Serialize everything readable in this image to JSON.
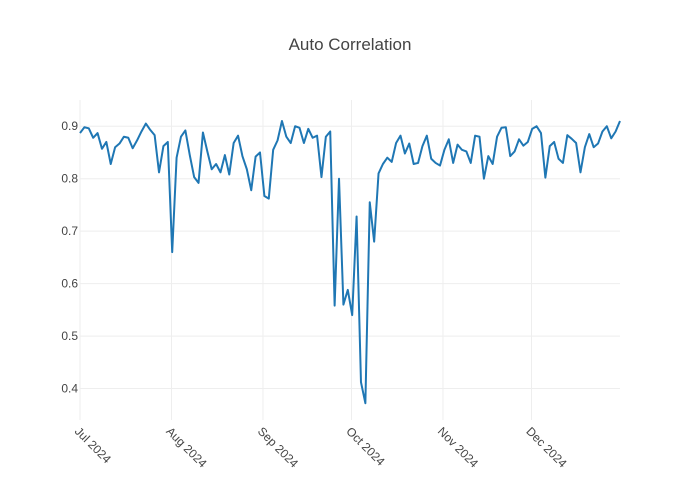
{
  "chart_data": {
    "type": "line",
    "title": "Auto Correlation",
    "xlabel": "",
    "ylabel": "",
    "x_start": "2024-07-01",
    "x_end": "2024-12-31",
    "xlim": [
      "2024-07-01",
      "2024-12-31"
    ],
    "ylim": [
      0.34,
      0.95
    ],
    "grid": true,
    "legend": "none",
    "line_color": "#1f77b4",
    "x_ticks": [
      {
        "date": "2024-07-01",
        "label": "Jul 2024"
      },
      {
        "date": "2024-08-01",
        "label": "Aug 2024"
      },
      {
        "date": "2024-09-01",
        "label": "Sep 2024"
      },
      {
        "date": "2024-10-01",
        "label": "Oct 2024"
      },
      {
        "date": "2024-11-01",
        "label": "Nov 2024"
      },
      {
        "date": "2024-12-01",
        "label": "Dec 2024"
      }
    ],
    "y_ticks": [
      {
        "value": 0.4,
        "label": "0.4"
      },
      {
        "value": 0.5,
        "label": "0.5"
      },
      {
        "value": 0.6,
        "label": "0.6"
      },
      {
        "value": 0.7,
        "label": "0.7"
      },
      {
        "value": 0.8,
        "label": "0.8"
      },
      {
        "value": 0.9,
        "label": "0.9"
      }
    ],
    "series": [
      {
        "values": [
          0.887,
          0.898,
          0.896,
          0.878,
          0.887,
          0.857,
          0.87,
          0.828,
          0.86,
          0.867,
          0.88,
          0.878,
          0.858,
          0.873,
          0.89,
          0.905,
          0.893,
          0.883,
          0.812,
          0.862,
          0.87,
          0.66,
          0.84,
          0.88,
          0.892,
          0.845,
          0.803,
          0.792,
          0.888,
          0.852,
          0.818,
          0.828,
          0.812,
          0.845,
          0.808,
          0.868,
          0.882,
          0.843,
          0.818,
          0.778,
          0.842,
          0.85,
          0.767,
          0.762,
          0.855,
          0.873,
          0.91,
          0.88,
          0.868,
          0.9,
          0.897,
          0.868,
          0.895,
          0.878,
          0.882,
          0.803,
          0.88,
          0.89,
          0.558,
          0.8,
          0.56,
          0.588,
          0.54,
          0.728,
          0.412,
          0.372,
          0.755,
          0.68,
          0.81,
          0.828,
          0.84,
          0.832,
          0.868,
          0.882,
          0.848,
          0.867,
          0.828,
          0.83,
          0.862,
          0.882,
          0.838,
          0.83,
          0.825,
          0.855,
          0.875,
          0.83,
          0.865,
          0.855,
          0.852,
          0.83,
          0.882,
          0.88,
          0.8,
          0.843,
          0.828,
          0.88,
          0.897,
          0.898,
          0.843,
          0.852,
          0.875,
          0.863,
          0.87,
          0.895,
          0.9,
          0.887,
          0.802,
          0.862,
          0.87,
          0.838,
          0.83,
          0.883,
          0.876,
          0.868,
          0.812,
          0.86,
          0.885,
          0.86,
          0.867,
          0.89,
          0.9,
          0.877,
          0.89,
          0.91
        ]
      }
    ]
  }
}
